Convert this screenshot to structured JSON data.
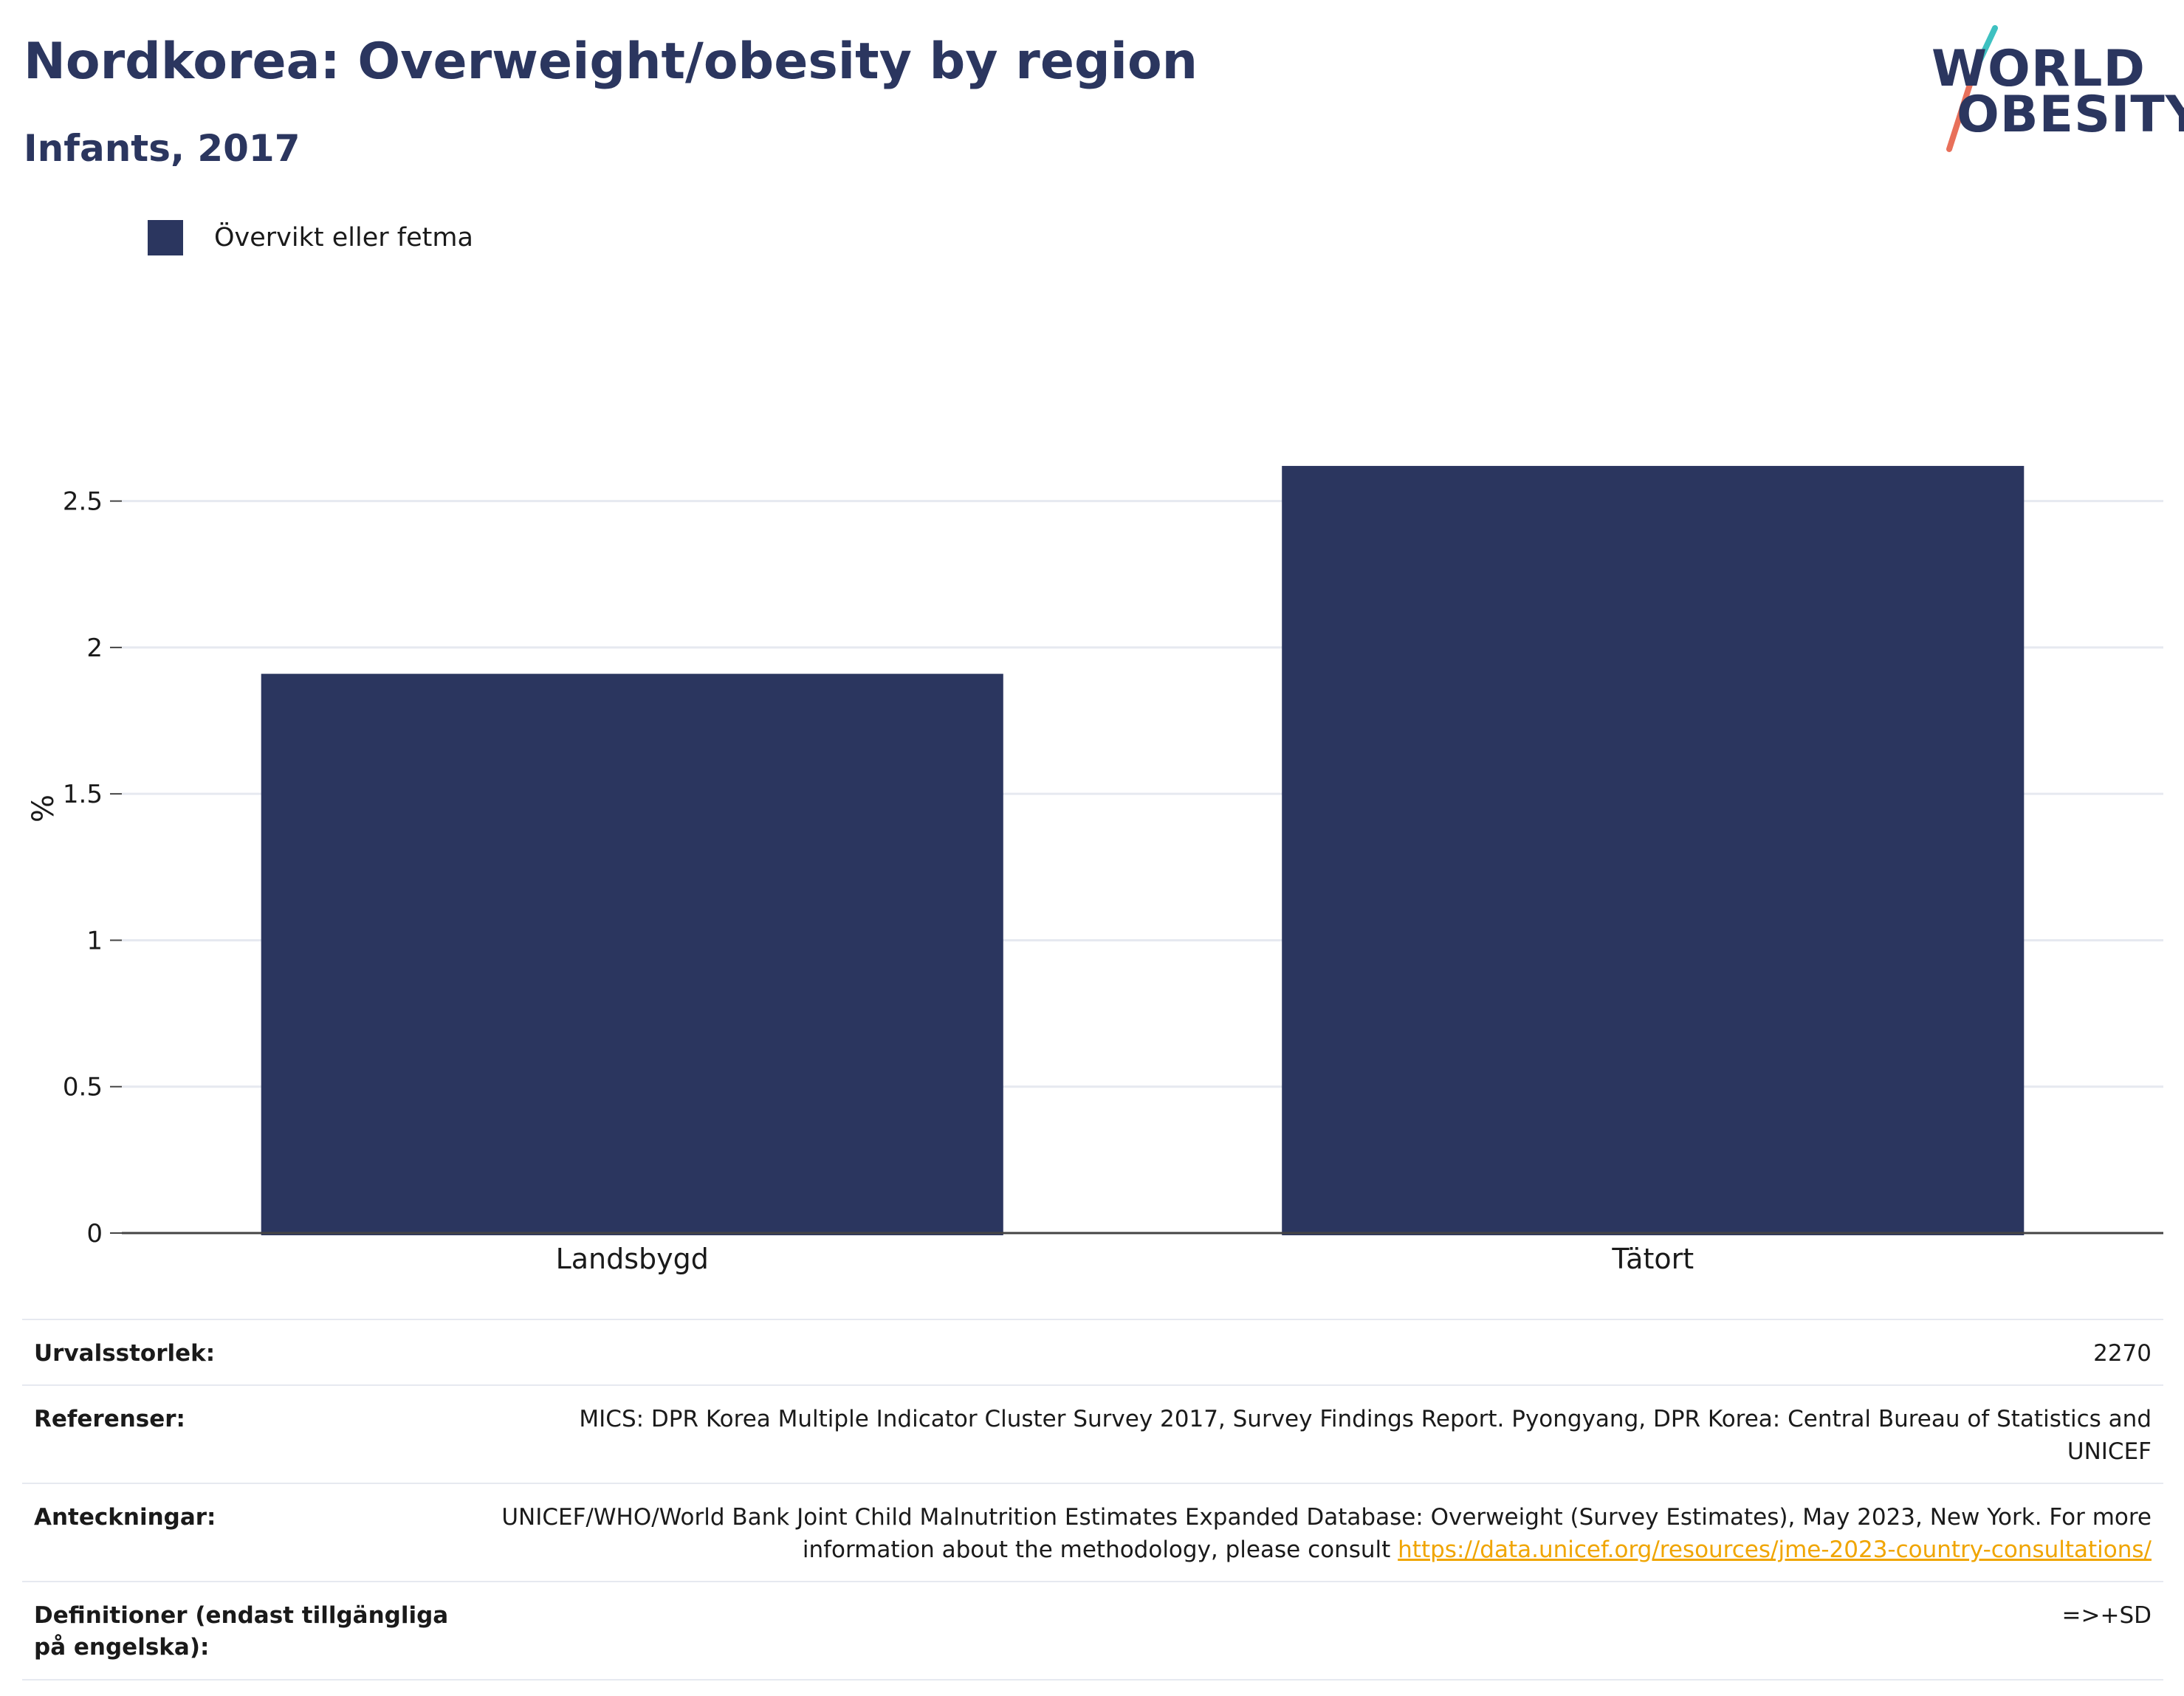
{
  "header": {
    "title": "Nordkorea: Overweight/obesity by region",
    "subtitle": "Infants, 2017"
  },
  "logo": {
    "line1": "WORLD",
    "line2": "OBESITY"
  },
  "legend": {
    "label": "Övervikt eller fetma",
    "color": "#2b365f"
  },
  "chart_data": {
    "type": "bar",
    "categories": [
      "Landsbygd",
      "Tätort"
    ],
    "series": [
      {
        "name": "Övervikt eller fetma",
        "values": [
          1.91,
          2.62
        ],
        "color": "#2b365f"
      }
    ],
    "ylabel": "%",
    "xlabel": "",
    "ylim": [
      0,
      2.9
    ],
    "yticks": [
      0,
      0.5,
      1,
      1.5,
      2,
      2.5
    ],
    "yticklabels": [
      "0",
      "0.5",
      "1",
      "1.5",
      "2",
      "2.5"
    ],
    "grid": true
  },
  "info": {
    "sample_label": "Urvalsstorlek:",
    "sample_value": "2270",
    "refs_label": "Referenser:",
    "refs_value": "MICS: DPR Korea Multiple Indicator Cluster Survey 2017, Survey Findings Report. Pyongyang, DPR Korea: Central Bureau of Statistics and UNICEF",
    "notes_label": "Anteckningar:",
    "notes_value": "UNICEF/WHO/World Bank Joint Child Malnutrition Estimates Expanded Database: Overweight (Survey Estimates), May 2023, New York. For more information about the methodology, please consult ",
    "notes_link": "https://data.unicef.org/resources/jme-2023-country-consultations/",
    "defs_label": "Definitioner (endast tillgängliga på engelska):",
    "defs_value": "=>+SD"
  },
  "colors": {
    "accent": "#2b365f",
    "link": "#f0a500",
    "logo_teal": "#3ec1c1",
    "logo_coral": "#e8705a"
  }
}
